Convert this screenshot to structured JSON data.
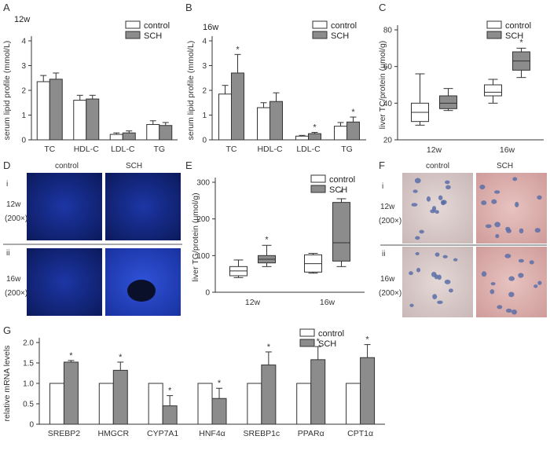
{
  "colors": {
    "control": "#ffffff",
    "sch": "#8c8c8c",
    "stroke": "#333333",
    "blue_dark": "#0d1f6b",
    "blue_mid": "#1a34a8",
    "blue_light": "#2e4fd6",
    "tissue_bg": "#d9c8c8",
    "tissue_pink": "#c98a8a",
    "nucleus": "#5b6fa8"
  },
  "legend": {
    "control": "control",
    "sch": "SCH"
  },
  "panels": {
    "A": {
      "label": "A",
      "time": "12w",
      "ylabel": "serum lipid profile (mmol/L)"
    },
    "B": {
      "label": "B",
      "time": "16w",
      "ylabel": "serum lipid profile (mmol/L)"
    },
    "C": {
      "label": "C",
      "ylabel": "liver TC/protein (μmol/g)"
    },
    "D": {
      "label": "D",
      "col_control": "control",
      "col_sch": "SCH",
      "row_i": "i",
      "row_ii": "ii",
      "row_i_time": "12w",
      "row_ii_time": "16w",
      "magnification": "(200×)"
    },
    "E": {
      "label": "E",
      "ylabel": "liver TG/protein (μmol/g)"
    },
    "F": {
      "label": "F",
      "col_control": "control",
      "col_sch": "SCH",
      "row_i": "i",
      "row_ii": "ii",
      "row_i_time": "12w",
      "row_ii_time": "16w",
      "magnification": "(200×)"
    },
    "G": {
      "label": "G",
      "ylabel": "relative mRNA levels"
    }
  },
  "chart_data": [
    {
      "id": "A",
      "type": "bar",
      "title": "12w",
      "ylabel": "serum lipid profile (mmol/L)",
      "ylim": [
        0,
        4
      ],
      "yticks": [
        0,
        1,
        2,
        3,
        4
      ],
      "categories": [
        "TC",
        "HDL-C",
        "LDL-C",
        "TG"
      ],
      "series": [
        {
          "name": "control",
          "values": [
            2.35,
            1.6,
            0.22,
            0.62
          ],
          "errors": [
            0.25,
            0.2,
            0.06,
            0.15
          ]
        },
        {
          "name": "SCH",
          "values": [
            2.45,
            1.65,
            0.28,
            0.58
          ],
          "errors": [
            0.25,
            0.15,
            0.08,
            0.12
          ]
        }
      ],
      "significant": []
    },
    {
      "id": "B",
      "type": "bar",
      "title": "16w",
      "ylabel": "serum lipid profile (mmol/L)",
      "ylim": [
        0,
        4
      ],
      "yticks": [
        0,
        1,
        2,
        3,
        4
      ],
      "categories": [
        "TC",
        "HDL-C",
        "LDL-C",
        "TG"
      ],
      "series": [
        {
          "name": "control",
          "values": [
            1.85,
            1.3,
            0.15,
            0.55
          ],
          "errors": [
            0.35,
            0.2,
            0.03,
            0.15
          ]
        },
        {
          "name": "SCH",
          "values": [
            2.7,
            1.55,
            0.25,
            0.72
          ],
          "errors": [
            0.75,
            0.35,
            0.05,
            0.2
          ]
        }
      ],
      "significant": [
        [
          1,
          0
        ],
        [
          1,
          2
        ],
        [
          1,
          3
        ]
      ]
    },
    {
      "id": "C",
      "type": "box",
      "ylabel": "liver TC/protein (μmol/g)",
      "ylim": [
        20,
        80
      ],
      "yticks": [
        20,
        40,
        60,
        80
      ],
      "categories": [
        "12w",
        "16w"
      ],
      "series": [
        {
          "name": "control",
          "boxes": [
            {
              "min": 28,
              "q1": 30,
              "median": 35,
              "q3": 40,
              "max": 56
            },
            {
              "min": 40,
              "q1": 44,
              "median": 46,
              "q3": 50,
              "max": 53
            }
          ]
        },
        {
          "name": "SCH",
          "boxes": [
            {
              "min": 36,
              "q1": 37,
              "median": 40,
              "q3": 44,
              "max": 48
            },
            {
              "min": 54,
              "q1": 58,
              "median": 63,
              "q3": 68,
              "max": 70
            }
          ]
        }
      ],
      "significant": [
        [
          1,
          1
        ]
      ]
    },
    {
      "id": "E",
      "type": "box",
      "ylabel": "liver TG/protein (μmol/g)",
      "ylim": [
        0,
        300
      ],
      "yticks": [
        0,
        100,
        200,
        300
      ],
      "categories": [
        "12w",
        "16w"
      ],
      "series": [
        {
          "name": "control",
          "boxes": [
            {
              "min": 40,
              "q1": 45,
              "median": 58,
              "q3": 70,
              "max": 88
            },
            {
              "min": 52,
              "q1": 55,
              "median": 78,
              "q3": 102,
              "max": 106
            }
          ]
        },
        {
          "name": "SCH",
          "boxes": [
            {
              "min": 70,
              "q1": 80,
              "median": 90,
              "q3": 100,
              "max": 128
            },
            {
              "min": 70,
              "q1": 85,
              "median": 135,
              "q3": 245,
              "max": 255
            }
          ]
        }
      ],
      "significant": [
        [
          1,
          0
        ],
        [
          1,
          1
        ]
      ]
    },
    {
      "id": "G",
      "type": "bar",
      "ylabel": "relative mRNA levels",
      "ylim": [
        0,
        2.0
      ],
      "yticks": [
        0,
        0.5,
        1.0,
        1.5,
        2.0
      ],
      "ytick_labels": [
        "0",
        "0.5",
        "1.0",
        "1.5",
        "2.0"
      ],
      "categories": [
        "SREBP2",
        "HMGCR",
        "CYP7A1",
        "HNF4α",
        "SREBP1c",
        "PPARα",
        "CPT1α"
      ],
      "series": [
        {
          "name": "control",
          "values": [
            1.0,
            1.0,
            1.0,
            1.0,
            1.0,
            1.0,
            1.0
          ],
          "errors": [
            0,
            0,
            0,
            0,
            0,
            0,
            0
          ]
        },
        {
          "name": "SCH",
          "values": [
            1.52,
            1.32,
            0.45,
            0.63,
            1.45,
            1.58,
            1.63
          ],
          "errors": [
            0.04,
            0.2,
            0.25,
            0.25,
            0.32,
            0.32,
            0.32
          ]
        }
      ],
      "significant": [
        [
          1,
          0
        ],
        [
          1,
          1
        ],
        [
          1,
          2
        ],
        [
          1,
          3
        ],
        [
          1,
          4
        ],
        [
          1,
          5
        ],
        [
          1,
          6
        ]
      ]
    }
  ]
}
